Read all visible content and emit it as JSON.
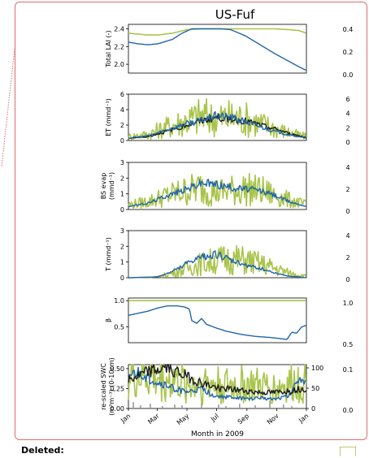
{
  "figure_title": "US-Fuf",
  "deleted_label": "Deleted:",
  "colors": {
    "olive": "#a9c44b",
    "blue": "#2265a8",
    "black": "#1a1a1a",
    "gray": "#9a9a9a",
    "border": "#e06b6b"
  },
  "chart_data": [
    {
      "type": "line",
      "panel": "lai",
      "ylabel": "Total LAI (-)",
      "ylim": [
        1.9,
        2.45
      ],
      "yticks": [
        "2.4",
        "2.2",
        "2.0"
      ],
      "ytick_values": [
        2.4,
        2.2,
        2.0
      ],
      "right_ticks": [
        "0.4",
        "0.2",
        "0.0"
      ],
      "series": [
        {
          "color": "olive",
          "x": [
            0,
            20,
            40,
            60,
            90,
            120,
            150,
            180,
            210,
            240,
            270,
            300,
            330,
            350,
            365
          ],
          "y": [
            2.35,
            2.34,
            2.33,
            2.33,
            2.35,
            2.39,
            2.4,
            2.4,
            2.4,
            2.4,
            2.4,
            2.4,
            2.39,
            2.38,
            2.35
          ]
        },
        {
          "color": "blue",
          "x": [
            0,
            20,
            40,
            60,
            90,
            110,
            130,
            150,
            170,
            190,
            210,
            240,
            270,
            300,
            330,
            350,
            365
          ],
          "y": [
            2.25,
            2.23,
            2.22,
            2.23,
            2.28,
            2.35,
            2.4,
            2.4,
            2.4,
            2.4,
            2.39,
            2.32,
            2.22,
            2.12,
            2.03,
            1.97,
            1.93
          ]
        }
      ]
    },
    {
      "type": "line",
      "panel": "et",
      "ylabel": "ET (mmd⁻¹)",
      "ylim": [
        0,
        6
      ],
      "yticks": [
        "6",
        "4",
        "2",
        "0"
      ],
      "ytick_values": [
        6,
        4,
        2,
        0
      ],
      "right_ticks": [
        "6",
        "4",
        "2",
        "0"
      ],
      "series": [
        {
          "color": "olive",
          "pattern": "noisy",
          "x": [
            0,
            40,
            80,
            120,
            150,
            180,
            210,
            240,
            270,
            300,
            330,
            365
          ],
          "y": [
            0.5,
            0.8,
            1.8,
            2.6,
            3.2,
            2.8,
            3.0,
            2.8,
            2.2,
            1.6,
            1.0,
            0.5
          ]
        },
        {
          "color": "black",
          "x": [
            0,
            40,
            80,
            120,
            150,
            180,
            210,
            240,
            270,
            300,
            330,
            365
          ],
          "y": [
            0.3,
            0.5,
            1.2,
            2.0,
            2.5,
            3.0,
            2.8,
            2.5,
            2.0,
            1.5,
            0.9,
            0.4
          ]
        },
        {
          "color": "blue",
          "x": [
            0,
            40,
            80,
            120,
            150,
            180,
            210,
            240,
            270,
            300,
            330,
            365
          ],
          "y": [
            0.3,
            0.6,
            1.4,
            2.2,
            2.6,
            3.2,
            3.0,
            2.4,
            1.8,
            1.2,
            0.7,
            0.3
          ]
        }
      ]
    },
    {
      "type": "line",
      "panel": "bs",
      "ylabel": "BS evap",
      "ylabel2": "(mmd⁻¹)",
      "ylim": [
        0,
        3
      ],
      "yticks": [
        "3",
        "2",
        "1",
        "0"
      ],
      "ytick_values": [
        3,
        2,
        1,
        0
      ],
      "right_ticks": [
        "4",
        "2",
        "0"
      ],
      "series": [
        {
          "color": "olive",
          "pattern": "noisy",
          "x": [
            0,
            40,
            80,
            120,
            150,
            180,
            210,
            240,
            270,
            300,
            330,
            365
          ],
          "y": [
            0.3,
            0.5,
            0.9,
            1.2,
            1.4,
            1.1,
            1.2,
            1.3,
            1.2,
            0.9,
            0.6,
            0.3
          ]
        },
        {
          "color": "blue",
          "x": [
            0,
            40,
            80,
            120,
            150,
            180,
            210,
            240,
            270,
            300,
            330,
            365
          ],
          "y": [
            0.2,
            0.4,
            0.9,
            1.3,
            1.7,
            1.6,
            1.4,
            1.3,
            1.2,
            0.9,
            0.5,
            0.2
          ]
        }
      ]
    },
    {
      "type": "line",
      "panel": "t",
      "ylabel": "T (mmd⁻¹)",
      "ylim": [
        0,
        3
      ],
      "yticks": [
        "3",
        "2",
        "1",
        "0"
      ],
      "ytick_values": [
        3,
        2,
        1,
        0
      ],
      "right_ticks": [
        "4",
        "2",
        "0"
      ],
      "series": [
        {
          "color": "olive",
          "pattern": "noisy",
          "x": [
            0,
            60,
            90,
            120,
            150,
            180,
            210,
            240,
            270,
            300,
            330,
            365
          ],
          "y": [
            0.0,
            0.05,
            0.3,
            0.6,
            0.9,
            1.1,
            1.2,
            1.1,
            0.9,
            0.6,
            0.3,
            0.1
          ]
        },
        {
          "color": "blue",
          "x": [
            0,
            60,
            90,
            120,
            150,
            180,
            210,
            240,
            270,
            300,
            330,
            365
          ],
          "y": [
            0.0,
            0.05,
            0.4,
            0.9,
            1.3,
            1.5,
            1.1,
            0.8,
            0.6,
            0.3,
            0.1,
            0.0
          ]
        }
      ]
    },
    {
      "type": "line",
      "panel": "beta",
      "ylabel": "β",
      "ylim": [
        0.2,
        1.05
      ],
      "yticks": [
        "1.0",
        "0.5"
      ],
      "ytick_values": [
        1.0,
        0.5
      ],
      "right_ticks": [
        "1.0",
        "0.5"
      ],
      "series": [
        {
          "color": "olive",
          "x": [
            0,
            365
          ],
          "y": [
            1.0,
            1.0
          ]
        },
        {
          "color": "blue",
          "x": [
            0,
            20,
            40,
            60,
            80,
            100,
            115,
            125,
            130,
            140,
            150,
            160,
            180,
            200,
            230,
            260,
            290,
            310,
            325,
            335,
            345,
            355,
            365
          ],
          "y": [
            0.72,
            0.76,
            0.8,
            0.86,
            0.9,
            0.9,
            0.88,
            0.84,
            0.62,
            0.57,
            0.66,
            0.55,
            0.48,
            0.42,
            0.36,
            0.32,
            0.3,
            0.28,
            0.26,
            0.4,
            0.38,
            0.5,
            0.53
          ]
        }
      ]
    },
    {
      "type": "line",
      "panel": "swc",
      "ylabel": "re-scaled SWC",
      "ylabel2": "(m³m⁻³) (0-10cm)",
      "ylim": [
        0,
        0.55
      ],
      "yticks": [
        "0.50",
        "0.25",
        "0.00"
      ],
      "ytick_values": [
        0.5,
        0.25,
        0.0
      ],
      "right_axis_ticks": [
        "100",
        "50",
        "0"
      ],
      "right_ticks": [
        "0.1",
        "0.0"
      ],
      "xlabel": "Month in 2009",
      "xticks": [
        "Jan",
        "Mar",
        "May",
        "Jul",
        "Sep",
        "Nov",
        "Jan"
      ],
      "xtick_values": [
        0,
        59,
        120,
        181,
        243,
        304,
        365
      ],
      "series": [
        {
          "color": "olive",
          "pattern": "noisy",
          "x": [
            0,
            30,
            60,
            90,
            120,
            150,
            180,
            210,
            240,
            270,
            300,
            330,
            365
          ],
          "y": [
            0.4,
            0.42,
            0.38,
            0.35,
            0.3,
            0.32,
            0.3,
            0.28,
            0.3,
            0.27,
            0.25,
            0.3,
            0.35
          ]
        },
        {
          "color": "blue",
          "x": [
            0,
            20,
            40,
            60,
            90,
            120,
            150,
            180,
            210,
            240,
            270,
            300,
            330,
            350,
            365
          ],
          "y": [
            0.4,
            0.44,
            0.38,
            0.32,
            0.26,
            0.2,
            0.24,
            0.15,
            0.14,
            0.12,
            0.13,
            0.12,
            0.16,
            0.4,
            0.32
          ]
        },
        {
          "color": "black",
          "x": [
            0,
            20,
            40,
            60,
            80,
            100,
            120,
            140,
            160,
            180,
            210,
            240,
            270,
            300,
            330,
            350,
            365
          ],
          "y": [
            0.36,
            0.4,
            0.46,
            0.48,
            0.52,
            0.46,
            0.4,
            0.34,
            0.3,
            0.26,
            0.24,
            0.22,
            0.2,
            0.2,
            0.22,
            0.24,
            0.25
          ]
        }
      ],
      "precip_bars": {
        "color": "gray",
        "x": [
          10,
          25,
          45,
          70,
          95,
          110,
          150,
          185,
          200,
          228,
          260,
          290,
          318,
          335
        ],
        "y": [
          0.08,
          0.04,
          0.06,
          0.03,
          0.05,
          0.04,
          0.07,
          0.05,
          0.03,
          0.06,
          0.04,
          0.1,
          0.05,
          0.03
        ]
      }
    }
  ]
}
